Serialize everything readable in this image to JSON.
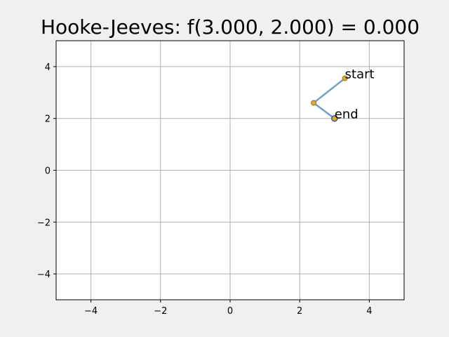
{
  "chart_data": {
    "type": "line",
    "title": "Hooke-Jeeves: f(3.000, 2.000) = 0.000",
    "xlabel": "",
    "ylabel": "",
    "xlim": [
      -5,
      5
    ],
    "ylim": [
      -5,
      5
    ],
    "xticks": [
      -4,
      -2,
      0,
      2,
      4
    ],
    "yticks": [
      -4,
      -2,
      0,
      2,
      4
    ],
    "x_tick_labels": [
      "−4",
      "−2",
      "0",
      "2",
      "4"
    ],
    "y_tick_labels": [
      "−4",
      "−2",
      "0",
      "2",
      "4"
    ],
    "grid": true,
    "series": [
      {
        "points": [
          {
            "x": 3.3,
            "y": 3.55
          },
          {
            "x": 2.4,
            "y": 2.6
          },
          {
            "x": 3.0,
            "y": 2.0
          }
        ]
      }
    ],
    "annotations": [
      {
        "text": "start",
        "x": 3.3,
        "y": 3.55
      },
      {
        "text": "end",
        "x": 3.0,
        "y": 2.0
      }
    ],
    "colors": {
      "path": "#6aa3cf",
      "marker_fill": "#f2a51f",
      "marker_edge": "#8a7a3a",
      "end_marker_edge": "#1f5f9f",
      "grid": "#b0b0b0",
      "axes_bg": "#ffffff",
      "figure_bg": "#f0f0f0"
    }
  }
}
